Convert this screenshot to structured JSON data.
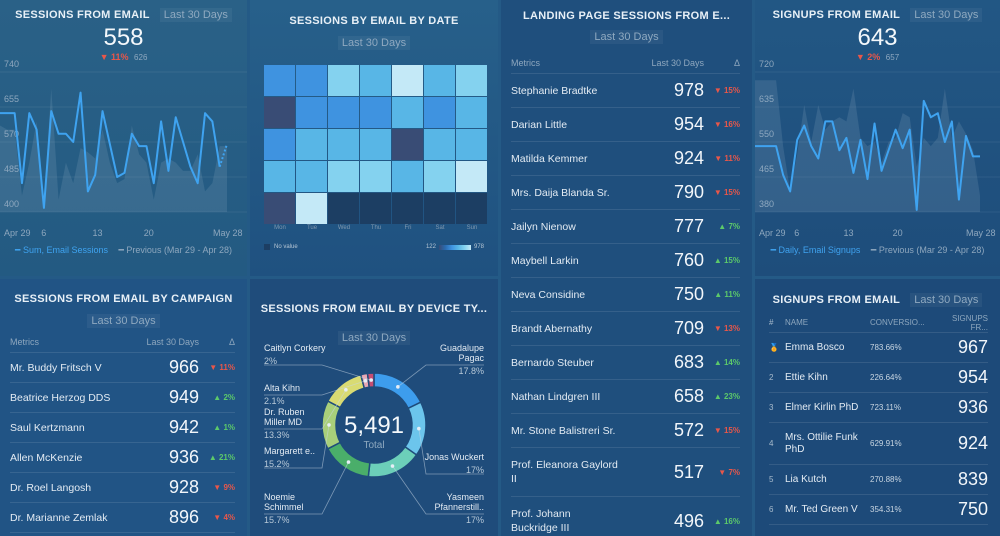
{
  "sessions_from_email": {
    "title": "SESSIONS FROM EMAIL",
    "period": "Last 30 Days",
    "value": "558",
    "delta": "11%",
    "delta_dir": "down",
    "previous": "626",
    "legend_current": "Sum, Email Sessions",
    "legend_previous": "Previous (Mar 29 - Apr 28)"
  },
  "sessions_by_date": {
    "title": "SESSIONS BY EMAIL BY DATE",
    "period": "Last 30 Days",
    "no_value_label": "No value",
    "scale_min": "122",
    "scale_max": "978"
  },
  "landing_page": {
    "title": "LANDING PAGE SESSIONS FROM E...",
    "period": "Last 30 Days",
    "col_metrics": "Metrics",
    "col_period": "Last 30 Days",
    "col_delta": "Δ",
    "rows": [
      {
        "name": "Stephanie Bradtke",
        "value": "978",
        "delta": "15%",
        "dir": "down"
      },
      {
        "name": "Darian Little",
        "value": "954",
        "delta": "16%",
        "dir": "down"
      },
      {
        "name": "Matilda Kemmer",
        "value": "924",
        "delta": "11%",
        "dir": "down"
      },
      {
        "name": "Mrs. Daija Blanda Sr.",
        "value": "790",
        "delta": "15%",
        "dir": "down"
      },
      {
        "name": "Jailyn Nienow",
        "value": "777",
        "delta": "7%",
        "dir": "up"
      },
      {
        "name": "Maybell Larkin",
        "value": "760",
        "delta": "15%",
        "dir": "up"
      },
      {
        "name": "Neva Considine",
        "value": "750",
        "delta": "11%",
        "dir": "up"
      },
      {
        "name": "Brandt Abernathy",
        "value": "709",
        "delta": "13%",
        "dir": "down"
      },
      {
        "name": "Bernardo Steuber",
        "value": "683",
        "delta": "14%",
        "dir": "up"
      },
      {
        "name": "Nathan Lindgren III",
        "value": "658",
        "delta": "23%",
        "dir": "up"
      },
      {
        "name": "Mr. Stone Balistreri Sr.",
        "value": "572",
        "delta": "15%",
        "dir": "down"
      },
      {
        "name": "Prof. Eleanora Gaylord II",
        "value": "517",
        "delta": "7%",
        "dir": "down"
      },
      {
        "name": "Prof. Johann Buckridge III",
        "value": "496",
        "delta": "16%",
        "dir": "up"
      }
    ]
  },
  "signups_from_email": {
    "title": "SIGNUPS FROM EMAIL",
    "period": "Last 30 Days",
    "value": "643",
    "delta": "2%",
    "delta_dir": "down",
    "previous": "657",
    "legend_current": "Daily, Email Signups",
    "legend_previous": "Previous (Mar 29 - Apr 28)"
  },
  "by_campaign": {
    "title": "SESSIONS FROM EMAIL BY CAMPAIGN",
    "period": "Last 30 Days",
    "col_metrics": "Metrics",
    "col_period": "Last 30 Days",
    "col_delta": "Δ",
    "rows": [
      {
        "name": "Mr. Buddy Fritsch V",
        "value": "966",
        "delta": "11%",
        "dir": "down"
      },
      {
        "name": "Beatrice Herzog DDS",
        "value": "949",
        "delta": "2%",
        "dir": "up"
      },
      {
        "name": "Saul Kertzmann",
        "value": "942",
        "delta": "1%",
        "dir": "up"
      },
      {
        "name": "Allen McKenzie",
        "value": "936",
        "delta": "21%",
        "dir": "up"
      },
      {
        "name": "Dr. Roel Langosh",
        "value": "928",
        "delta": "9%",
        "dir": "down"
      },
      {
        "name": "Dr. Marianne Zemlak",
        "value": "896",
        "delta": "4%",
        "dir": "down"
      }
    ]
  },
  "by_device": {
    "title": "SESSIONS FROM EMAIL BY DEVICE TY...",
    "period": "Last 30 Days",
    "total": "5,491",
    "total_label": "Total"
  },
  "signups_leaderboard": {
    "title": "SIGNUPS FROM EMAIL",
    "period": "Last 30 Days",
    "col_rank": "#",
    "col_name": "NAME",
    "col_conv": "CONVERSIO...",
    "col_signups": "SIGNUPS FR...",
    "rows": [
      {
        "rank": "🏅",
        "name": "Emma Bosco",
        "conv": "783.66%",
        "value": "967"
      },
      {
        "rank": "2",
        "name": "Ettie Kihn",
        "conv": "226.64%",
        "value": "954"
      },
      {
        "rank": "3",
        "name": "Elmer Kirlin PhD",
        "conv": "723.11%",
        "value": "936"
      },
      {
        "rank": "4",
        "name": "Mrs. Ottilie Funk PhD",
        "conv": "629.91%",
        "value": "924"
      },
      {
        "rank": "5",
        "name": "Lia Kutch",
        "conv": "270.88%",
        "value": "839"
      },
      {
        "rank": "6",
        "name": "Mr. Ted Green V",
        "conv": "354.31%",
        "value": "750"
      }
    ]
  },
  "chart_data": [
    {
      "type": "line",
      "title": "SESSIONS FROM EMAIL",
      "x_ticks": [
        "Apr 29",
        "6",
        "13",
        "20",
        "May 28"
      ],
      "y_ticks": [
        740,
        655,
        570,
        485,
        400
      ],
      "ylim": [
        400,
        740
      ],
      "series": [
        {
          "name": "Sum, Email Sessions",
          "values": [
            640,
            640,
            640,
            470,
            640,
            600,
            410,
            645,
            590,
            590,
            570,
            690,
            450,
            490,
            645,
            565,
            485,
            495,
            590,
            560,
            560,
            470,
            620,
            500,
            630,
            570,
            510,
            470,
            640,
            620,
            510,
            565
          ]
        },
        {
          "name": "Previous (Mar 29 - Apr 28)",
          "values": [
            610,
            600,
            600,
            440,
            520,
            620,
            420,
            700,
            430,
            520,
            470,
            555,
            545,
            530,
            600,
            520,
            470,
            480,
            610,
            540,
            520,
            430,
            520,
            530,
            520,
            500,
            500,
            540,
            450,
            470,
            560,
            560
          ]
        }
      ]
    },
    {
      "type": "heatmap",
      "title": "SESSIONS BY EMAIL BY DATE",
      "x_labels": [
        "Mon",
        "Tue",
        "Wed",
        "Thu",
        "Fri",
        "Sat",
        "Sun"
      ],
      "range": [
        122,
        978
      ],
      "rows": [
        [
          420,
          420,
          820,
          620,
          960,
          620,
          820
        ],
        [
          170,
          420,
          420,
          420,
          620,
          420,
          720
        ],
        [
          420,
          620,
          620,
          620,
          150,
          620,
          720
        ],
        [
          720,
          620,
          820,
          820,
          720,
          820,
          960
        ],
        [
          170,
          960,
          null,
          null,
          null,
          null,
          null
        ]
      ]
    },
    {
      "type": "line",
      "title": "SIGNUPS FROM EMAIL",
      "x_ticks": [
        "Apr 29",
        "6",
        "13",
        "20",
        "May 28"
      ],
      "y_ticks": [
        720,
        635,
        550,
        465,
        380
      ],
      "ylim": [
        380,
        720
      ],
      "series": [
        {
          "name": "Daily, Email Signups",
          "values": [
            540,
            540,
            540,
            540,
            470,
            430,
            555,
            590,
            540,
            510,
            600,
            600,
            530,
            560,
            475,
            555,
            460,
            595,
            480,
            530,
            580,
            535,
            580,
            385,
            650,
            610,
            620,
            550,
            600,
            410,
            565,
            515,
            515
          ]
        },
        {
          "name": "Previous (Mar 29 - Apr 28)",
          "values": [
            700,
            700,
            700,
            700,
            540,
            430,
            520,
            640,
            550,
            640,
            580,
            600,
            610,
            600,
            680,
            560,
            540,
            550,
            500,
            550,
            560,
            620,
            610,
            490,
            560,
            540,
            560,
            680,
            560,
            600,
            570,
            530,
            420
          ]
        }
      ]
    },
    {
      "type": "pie",
      "title": "SESSIONS FROM EMAIL BY DEVICE TY...",
      "total": 5491,
      "slices": [
        {
          "label": "Guadalupe Pagac",
          "value": 17.8,
          "color": "#3d9ded"
        },
        {
          "label": "Jonas Wuckert",
          "value": 17,
          "color": "#6cc5ec"
        },
        {
          "label": "Yasmeen Pfannerstill..",
          "value": 17,
          "color": "#6ccfb9"
        },
        {
          "label": "Noemie Schimmel",
          "value": 15.7,
          "color": "#4aae6a"
        },
        {
          "label": "Margarett e..",
          "value": 15.2,
          "color": "#a8cf7a"
        },
        {
          "label": "Dr. Ruben Miller MD",
          "value": 13.3,
          "color": "#d9db72"
        },
        {
          "label": "Alta Kihn",
          "value": 2.1,
          "color": "#e7a7b4"
        },
        {
          "label": "Caitlyn Corkery",
          "value": 2,
          "color": "#c74e73"
        }
      ]
    }
  ]
}
